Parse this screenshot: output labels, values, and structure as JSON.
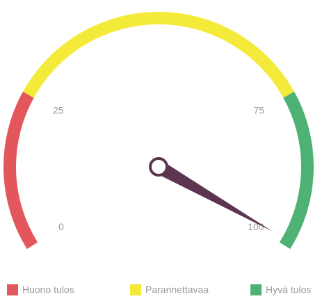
{
  "chart_data": {
    "type": "gauge",
    "value": 99,
    "range": [
      0,
      100
    ],
    "ticks": [
      0,
      25,
      75,
      100
    ],
    "needle_color": "#5c3551",
    "bands": [
      {
        "name": "Huono tulos",
        "color": "#e3565b",
        "from": 0,
        "to": 25
      },
      {
        "name": "Parannettavaa",
        "color": "#f4ea3a",
        "from": 25,
        "to": 75
      },
      {
        "name": "Hyvä tulos",
        "color": "#4db273",
        "from": 75,
        "to": 100
      }
    ]
  }
}
